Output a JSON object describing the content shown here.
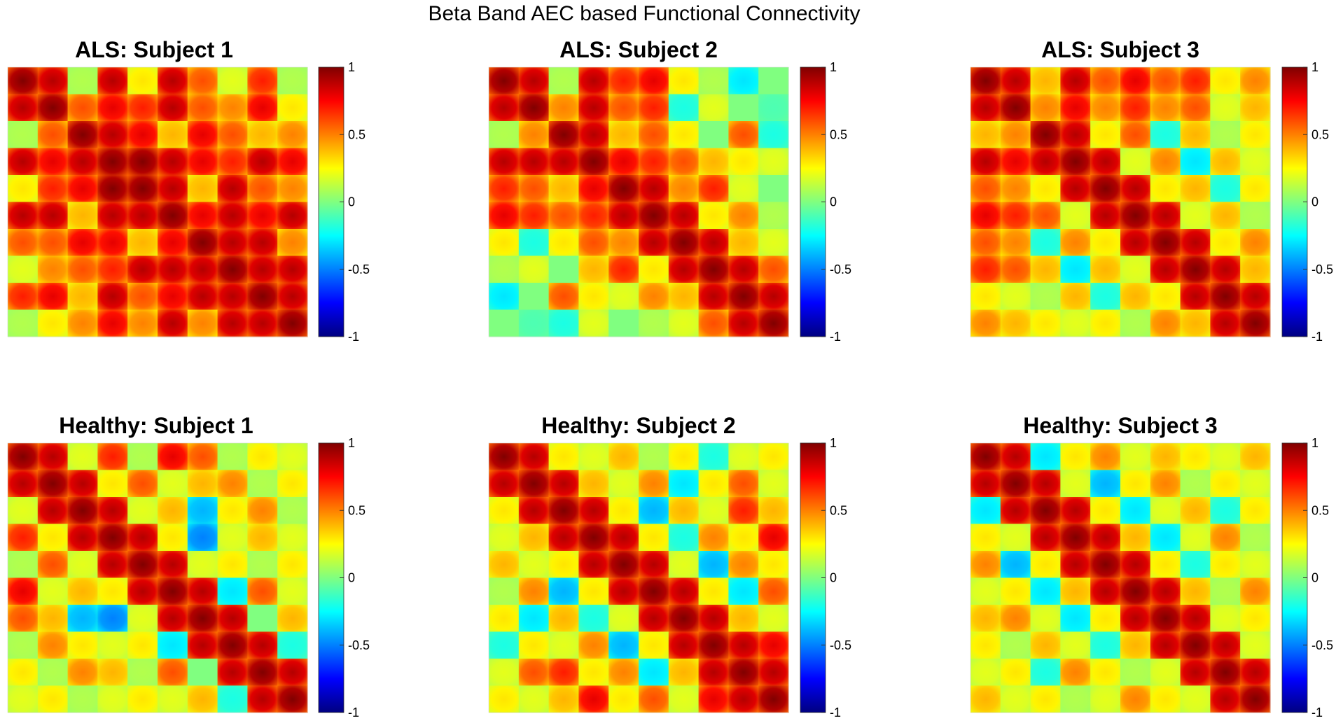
{
  "figure": {
    "title": "Beta Band AEC based Functional Connectivity"
  },
  "chart_data": [
    {
      "type": "heatmap",
      "title": "ALS: Subject 1",
      "group": "ALS",
      "colormap": "jet",
      "clim": [
        -1,
        1
      ],
      "colorbar_ticks": [
        "1",
        "0.5",
        "0",
        "-0.5",
        "-1"
      ],
      "colorbar_values": [
        1,
        0.5,
        0,
        -0.5,
        -1
      ],
      "block_levels": [
        [
          1.0,
          0.9,
          0.1,
          0.9,
          0.3,
          0.9,
          0.6,
          0.2,
          0.7,
          0.1
        ],
        [
          0.9,
          1.0,
          0.6,
          0.8,
          0.7,
          0.9,
          0.6,
          0.5,
          0.8,
          0.3
        ],
        [
          0.1,
          0.6,
          1.0,
          0.9,
          0.8,
          0.4,
          0.8,
          0.6,
          0.4,
          0.5
        ],
        [
          0.9,
          0.8,
          0.9,
          1.0,
          1.0,
          0.9,
          0.8,
          0.7,
          0.9,
          0.8
        ],
        [
          0.3,
          0.7,
          0.8,
          1.0,
          1.0,
          0.9,
          0.4,
          0.9,
          0.6,
          0.5
        ],
        [
          0.9,
          0.9,
          0.4,
          0.9,
          0.9,
          1.0,
          0.8,
          0.9,
          0.8,
          0.9
        ],
        [
          0.6,
          0.6,
          0.8,
          0.8,
          0.4,
          0.8,
          1.0,
          0.9,
          0.9,
          0.5
        ],
        [
          0.2,
          0.5,
          0.6,
          0.7,
          0.9,
          0.9,
          0.9,
          1.0,
          0.9,
          0.9
        ],
        [
          0.7,
          0.8,
          0.4,
          0.9,
          0.6,
          0.8,
          0.9,
          0.9,
          1.0,
          0.9
        ],
        [
          0.1,
          0.3,
          0.5,
          0.8,
          0.5,
          0.9,
          0.5,
          0.9,
          0.9,
          1.0
        ]
      ]
    },
    {
      "type": "heatmap",
      "title": "ALS: Subject 2",
      "group": "ALS",
      "colormap": "jet",
      "clim": [
        -1,
        1
      ],
      "colorbar_ticks": [
        "1",
        "0.5",
        "0",
        "-0.5",
        "-1"
      ],
      "colorbar_values": [
        1,
        0.5,
        0,
        -0.5,
        -1
      ],
      "block_levels": [
        [
          1.0,
          0.9,
          0.1,
          0.9,
          0.7,
          0.8,
          0.3,
          0.1,
          -0.3,
          0.0
        ],
        [
          0.9,
          1.0,
          0.5,
          0.9,
          0.6,
          0.7,
          -0.2,
          0.2,
          0.0,
          -0.1
        ],
        [
          0.1,
          0.5,
          1.0,
          0.9,
          0.4,
          0.6,
          0.3,
          0.0,
          0.6,
          -0.2
        ],
        [
          0.9,
          0.9,
          0.9,
          1.0,
          0.8,
          0.7,
          0.6,
          0.4,
          0.3,
          0.2
        ],
        [
          0.7,
          0.6,
          0.4,
          0.8,
          1.0,
          0.9,
          0.5,
          0.7,
          0.2,
          0.0
        ],
        [
          0.8,
          0.7,
          0.6,
          0.7,
          0.9,
          1.0,
          0.9,
          0.3,
          0.5,
          0.1
        ],
        [
          0.3,
          -0.2,
          0.3,
          0.6,
          0.5,
          0.9,
          1.0,
          0.9,
          0.4,
          0.2
        ],
        [
          0.1,
          0.2,
          0.0,
          0.4,
          0.7,
          0.3,
          0.9,
          1.0,
          0.9,
          0.6
        ],
        [
          -0.3,
          0.0,
          0.6,
          0.3,
          0.2,
          0.5,
          0.4,
          0.9,
          1.0,
          0.9
        ],
        [
          0.0,
          -0.1,
          -0.2,
          0.2,
          0.0,
          0.1,
          0.2,
          0.6,
          0.9,
          1.0
        ]
      ]
    },
    {
      "type": "heatmap",
      "title": "ALS: Subject 3",
      "group": "ALS",
      "colormap": "jet",
      "clim": [
        -1,
        1
      ],
      "colorbar_ticks": [
        "1",
        "0.5",
        "0",
        "-0.5",
        "-1"
      ],
      "colorbar_values": [
        1,
        0.5,
        0,
        -0.5,
        -1
      ],
      "block_levels": [
        [
          1.0,
          0.9,
          0.4,
          0.9,
          0.6,
          0.8,
          0.6,
          0.7,
          0.3,
          0.5
        ],
        [
          0.9,
          1.0,
          0.5,
          0.8,
          0.5,
          0.7,
          0.5,
          0.6,
          0.2,
          0.4
        ],
        [
          0.4,
          0.5,
          1.0,
          0.9,
          0.3,
          0.6,
          -0.2,
          0.4,
          0.1,
          0.3
        ],
        [
          0.9,
          0.8,
          0.9,
          1.0,
          0.9,
          0.2,
          0.5,
          -0.3,
          0.4,
          0.2
        ],
        [
          0.6,
          0.5,
          0.3,
          0.9,
          1.0,
          0.9,
          0.3,
          0.4,
          -0.2,
          0.3
        ],
        [
          0.8,
          0.7,
          0.6,
          0.2,
          0.9,
          1.0,
          0.9,
          0.2,
          0.4,
          0.1
        ],
        [
          0.6,
          0.5,
          -0.2,
          0.5,
          0.3,
          0.9,
          1.0,
          0.9,
          0.3,
          0.5
        ],
        [
          0.7,
          0.6,
          0.4,
          -0.3,
          0.4,
          0.2,
          0.9,
          1.0,
          0.9,
          0.4
        ],
        [
          0.3,
          0.2,
          0.1,
          0.4,
          -0.2,
          0.4,
          0.3,
          0.9,
          1.0,
          0.9
        ],
        [
          0.5,
          0.4,
          0.3,
          0.2,
          0.3,
          0.1,
          0.5,
          0.4,
          0.9,
          1.0
        ]
      ]
    },
    {
      "type": "heatmap",
      "title": "Healthy: Subject 1",
      "group": "Healthy",
      "colormap": "jet",
      "clim": [
        -1,
        1
      ],
      "colorbar_ticks": [
        "1",
        "0.5",
        "0",
        "-0.5",
        "-1"
      ],
      "colorbar_values": [
        1,
        0.5,
        0,
        -0.5,
        -1
      ],
      "block_levels": [
        [
          1.0,
          0.9,
          0.2,
          0.7,
          0.1,
          0.8,
          0.6,
          0.1,
          0.3,
          0.2
        ],
        [
          0.9,
          1.0,
          0.9,
          0.3,
          0.6,
          0.2,
          0.4,
          0.5,
          0.1,
          0.3
        ],
        [
          0.2,
          0.9,
          1.0,
          0.9,
          0.2,
          0.4,
          -0.4,
          0.3,
          0.5,
          0.1
        ],
        [
          0.7,
          0.3,
          0.9,
          1.0,
          0.9,
          0.3,
          -0.5,
          0.2,
          0.4,
          0.2
        ],
        [
          0.1,
          0.6,
          0.2,
          0.9,
          1.0,
          0.9,
          0.2,
          0.3,
          0.1,
          0.3
        ],
        [
          0.8,
          0.2,
          0.4,
          0.3,
          0.9,
          1.0,
          0.9,
          -0.3,
          0.6,
          0.2
        ],
        [
          0.6,
          0.4,
          -0.4,
          -0.5,
          0.2,
          0.9,
          1.0,
          0.9,
          0.0,
          0.4
        ],
        [
          0.1,
          0.5,
          0.3,
          0.2,
          0.3,
          -0.3,
          0.9,
          1.0,
          0.9,
          -0.2
        ],
        [
          0.3,
          0.1,
          0.5,
          0.4,
          0.1,
          0.6,
          0.0,
          0.9,
          1.0,
          0.9
        ],
        [
          0.2,
          0.3,
          0.1,
          0.2,
          0.3,
          0.2,
          0.4,
          -0.2,
          0.9,
          1.0
        ]
      ]
    },
    {
      "type": "heatmap",
      "title": "Healthy: Subject 2",
      "group": "Healthy",
      "colormap": "jet",
      "clim": [
        -1,
        1
      ],
      "colorbar_ticks": [
        "1",
        "0.5",
        "0",
        "-0.5",
        "-1"
      ],
      "colorbar_values": [
        1,
        0.5,
        0,
        -0.5,
        -1
      ],
      "block_levels": [
        [
          1.0,
          0.9,
          0.3,
          0.2,
          0.4,
          0.1,
          0.3,
          -0.2,
          0.2,
          0.3
        ],
        [
          0.9,
          1.0,
          0.9,
          0.4,
          0.2,
          0.5,
          -0.3,
          0.3,
          0.6,
          0.2
        ],
        [
          0.3,
          0.9,
          1.0,
          0.9,
          0.3,
          -0.4,
          0.4,
          0.2,
          0.7,
          0.4
        ],
        [
          0.2,
          0.4,
          0.9,
          1.0,
          0.9,
          0.3,
          -0.2,
          0.5,
          0.3,
          0.8
        ],
        [
          0.4,
          0.2,
          0.3,
          0.9,
          1.0,
          0.9,
          0.2,
          -0.4,
          0.5,
          0.3
        ],
        [
          0.1,
          0.5,
          -0.4,
          0.3,
          0.9,
          1.0,
          0.9,
          0.3,
          -0.3,
          0.6
        ],
        [
          0.3,
          -0.3,
          0.4,
          -0.2,
          0.2,
          0.9,
          1.0,
          0.9,
          0.4,
          0.2
        ],
        [
          -0.2,
          0.3,
          0.2,
          0.5,
          -0.4,
          0.3,
          0.9,
          1.0,
          0.9,
          0.8
        ],
        [
          0.2,
          0.6,
          0.7,
          0.3,
          0.5,
          -0.3,
          0.4,
          0.9,
          1.0,
          0.9
        ],
        [
          0.3,
          0.2,
          0.4,
          0.8,
          0.3,
          0.6,
          0.2,
          0.8,
          0.9,
          1.0
        ]
      ]
    },
    {
      "type": "heatmap",
      "title": "Healthy: Subject 3",
      "group": "Healthy",
      "colormap": "jet",
      "clim": [
        -1,
        1
      ],
      "colorbar_ticks": [
        "1",
        "0.5",
        "0",
        "-0.5",
        "-1"
      ],
      "colorbar_values": [
        1,
        0.5,
        0,
        -0.5,
        -1
      ],
      "block_levels": [
        [
          1.0,
          0.9,
          -0.3,
          0.3,
          0.5,
          0.2,
          0.4,
          0.3,
          0.2,
          0.4
        ],
        [
          0.9,
          1.0,
          0.9,
          0.2,
          -0.4,
          0.3,
          0.5,
          0.1,
          0.3,
          0.2
        ],
        [
          -0.3,
          0.9,
          1.0,
          0.9,
          0.3,
          -0.3,
          0.2,
          0.4,
          -0.2,
          0.3
        ],
        [
          0.3,
          0.2,
          0.9,
          1.0,
          0.9,
          0.4,
          -0.3,
          0.2,
          0.5,
          0.1
        ],
        [
          0.5,
          -0.4,
          0.3,
          0.9,
          1.0,
          0.9,
          0.3,
          -0.2,
          0.3,
          0.2
        ],
        [
          0.2,
          0.3,
          -0.3,
          0.4,
          0.9,
          1.0,
          0.9,
          0.4,
          0.1,
          0.5
        ],
        [
          0.4,
          0.5,
          0.2,
          -0.3,
          0.3,
          0.9,
          1.0,
          0.9,
          0.2,
          0.3
        ],
        [
          0.3,
          0.1,
          0.4,
          0.2,
          -0.2,
          0.4,
          0.9,
          1.0,
          0.9,
          0.2
        ],
        [
          0.2,
          0.3,
          -0.2,
          0.5,
          0.3,
          0.1,
          0.2,
          0.9,
          1.0,
          0.9
        ],
        [
          0.4,
          0.2,
          0.3,
          0.1,
          0.2,
          0.5,
          0.3,
          0.2,
          0.9,
          1.0
        ]
      ]
    }
  ]
}
